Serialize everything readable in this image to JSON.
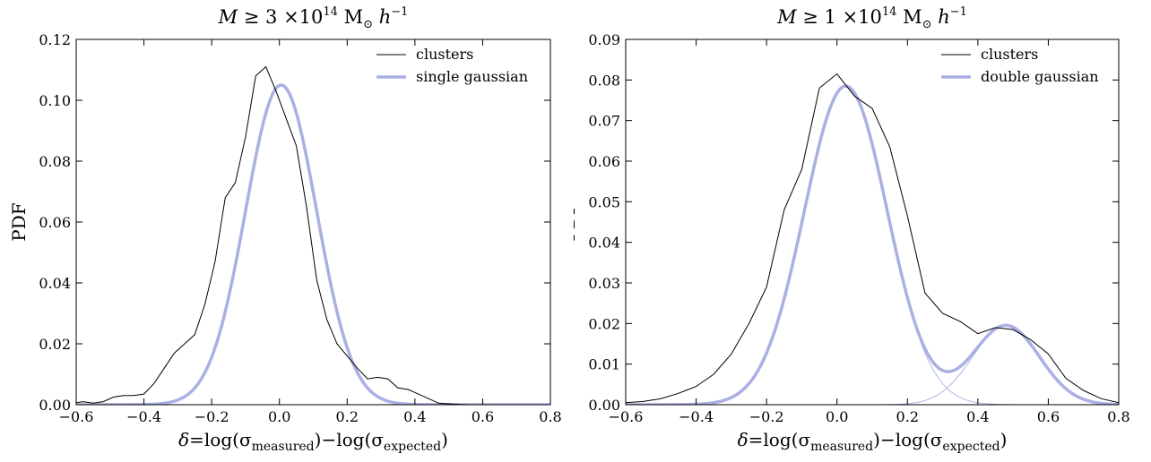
{
  "chart_data": [
    {
      "type": "line",
      "title": {
        "mass": "M",
        "ge": "≥",
        "coef": "3",
        "times": "×10",
        "exp": "14",
        "unit": "M",
        "sun": "⊙",
        "h": "h",
        "hexp": "−1"
      },
      "ylabel": "PDF",
      "xlabel": {
        "delta": "δ",
        "eq": "=log(σ",
        "sub1": "measured",
        "mid": ")−log(σ",
        "sub2": "expected",
        "end": ")"
      },
      "xlim": [
        -0.6,
        0.8
      ],
      "ylim": [
        0,
        0.12
      ],
      "xticks": [
        "−0.6",
        "−0.4",
        "−0.2",
        "0.0",
        "0.2",
        "0.4",
        "0.6",
        "0.8"
      ],
      "yticks": [
        "0.00",
        "0.02",
        "0.04",
        "0.06",
        "0.08",
        "0.10",
        "0.12"
      ],
      "legend_position": "top-right",
      "grid": false,
      "series": [
        {
          "name": "clusters",
          "color": "#000000",
          "x": [
            -0.61,
            -0.58,
            -0.55,
            -0.52,
            -0.49,
            -0.46,
            -0.43,
            -0.4,
            -0.37,
            -0.34,
            -0.31,
            -0.28,
            -0.25,
            -0.22,
            -0.19,
            -0.16,
            -0.13,
            -0.1,
            -0.07,
            -0.04,
            -0.01,
            0.02,
            0.05,
            0.08,
            0.11,
            0.14,
            0.17,
            0.2,
            0.23,
            0.26,
            0.29,
            0.32,
            0.35,
            0.38,
            0.41,
            0.44,
            0.47,
            0.5,
            0.53,
            0.56,
            0.59,
            0.62,
            0.65,
            0.68,
            0.71,
            0.74,
            0.77,
            0.8
          ],
          "y": [
            0.0005,
            0.001,
            0.0005,
            0.001,
            0.0025,
            0.003,
            0.003,
            0.0035,
            0.007,
            0.012,
            0.017,
            0.02,
            0.023,
            0.033,
            0.047,
            0.068,
            0.073,
            0.088,
            0.108,
            0.111,
            0.103,
            0.094,
            0.085,
            0.065,
            0.041,
            0.028,
            0.02,
            0.016,
            0.012,
            0.0085,
            0.009,
            0.0085,
            0.0055,
            0.005,
            0.0035,
            0.002,
            0.0005,
            0.0003,
            0.0001,
            0.0,
            0.0,
            0.0,
            0.0,
            0.0,
            0.0,
            0.0,
            0.0,
            0.0
          ]
        },
        {
          "name": "single gaussian",
          "color": "#aab0e4",
          "model": "gaussian",
          "components": [
            {
              "amp": 0.105,
              "mu": 0.005,
              "sigma": 0.105
            }
          ]
        }
      ]
    },
    {
      "type": "line",
      "title": {
        "mass": "M",
        "ge": "≥",
        "coef": "1",
        "times": "×10",
        "exp": "14",
        "unit": "M",
        "sun": "⊙",
        "h": "h",
        "hexp": "−1"
      },
      "ylabel": "PDF",
      "xlabel": {
        "delta": "δ",
        "eq": "=log(σ",
        "sub1": "measured",
        "mid": ")−log(σ",
        "sub2": "expected",
        "end": ")"
      },
      "xlim": [
        -0.6,
        0.8
      ],
      "ylim": [
        0,
        0.09
      ],
      "xticks": [
        "−0.6",
        "−0.4",
        "−0.2",
        "0.0",
        "0.2",
        "0.4",
        "0.6",
        "0.8"
      ],
      "yticks": [
        "0.00",
        "0.01",
        "0.02",
        "0.03",
        "0.04",
        "0.05",
        "0.06",
        "0.07",
        "0.08",
        "0.09"
      ],
      "legend_position": "top-right",
      "grid": false,
      "series": [
        {
          "name": "clusters",
          "color": "#000000",
          "x": [
            -0.6,
            -0.55,
            -0.5,
            -0.45,
            -0.4,
            -0.35,
            -0.3,
            -0.25,
            -0.2,
            -0.15,
            -0.1,
            -0.05,
            0.0,
            0.05,
            0.1,
            0.15,
            0.2,
            0.25,
            0.3,
            0.35,
            0.4,
            0.45,
            0.5,
            0.55,
            0.6,
            0.65,
            0.7,
            0.75,
            0.8
          ],
          "y": [
            0.0005,
            0.0008,
            0.0015,
            0.0028,
            0.0045,
            0.0075,
            0.0125,
            0.02,
            0.029,
            0.048,
            0.058,
            0.078,
            0.0815,
            0.076,
            0.073,
            0.0635,
            0.0465,
            0.0275,
            0.0225,
            0.0205,
            0.0175,
            0.019,
            0.0185,
            0.016,
            0.0125,
            0.0065,
            0.0035,
            0.0015,
            0.0005
          ]
        },
        {
          "name": "double gaussian",
          "color": "#aab0e4",
          "model": "double-gaussian",
          "components": [
            {
              "amp": 0.0785,
              "mu": 0.025,
              "sigma": 0.118
            },
            {
              "amp": 0.0195,
              "mu": 0.48,
              "sigma": 0.095
            }
          ]
        }
      ]
    }
  ]
}
